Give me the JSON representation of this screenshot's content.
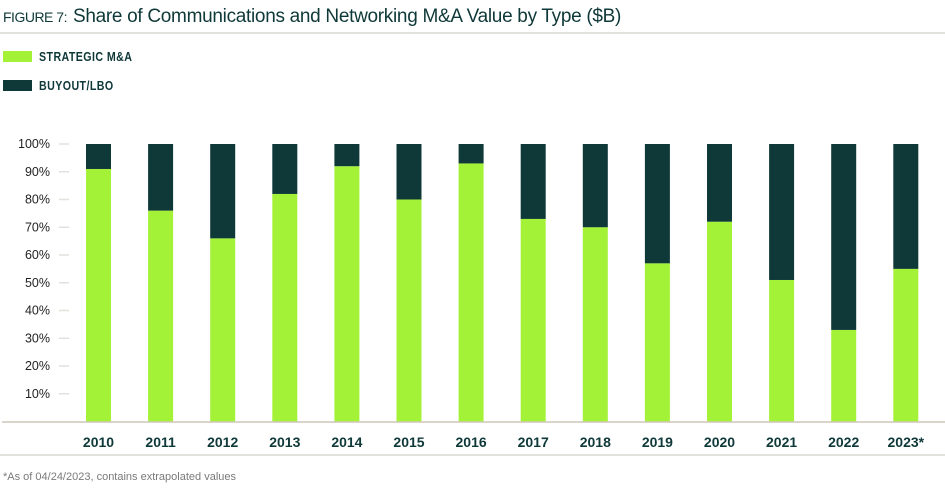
{
  "figure_label": "FIGURE 7:",
  "footnote": "*As of 04/24/2023, contains extrapolated values",
  "colors": {
    "strategic": "#a4f238",
    "buyout": "#0f3838",
    "rule": "#e3e1dc"
  },
  "chart_data": {
    "type": "bar",
    "stacked": true,
    "title": "Share of Communications and Networking M&A Value by Type ($B)",
    "categories": [
      "2010",
      "2011",
      "2012",
      "2013",
      "2014",
      "2015",
      "2016",
      "2017",
      "2018",
      "2019",
      "2020",
      "2021",
      "2022",
      "2023*"
    ],
    "series": [
      {
        "name": "STRATEGIC M&A",
        "values": [
          91,
          76,
          66,
          82,
          92,
          80,
          93,
          73,
          70,
          57,
          72,
          51,
          33,
          55
        ]
      },
      {
        "name": "BUYOUT/LBO",
        "values": [
          9,
          24,
          34,
          18,
          8,
          20,
          7,
          27,
          30,
          43,
          28,
          49,
          67,
          45
        ]
      }
    ],
    "yticks": [
      "10%",
      "20%",
      "30%",
      "40%",
      "50%",
      "60%",
      "70%",
      "80%",
      "90%",
      "100%"
    ],
    "ylim": [
      0,
      100
    ],
    "grid": false,
    "legend": "top-left"
  }
}
